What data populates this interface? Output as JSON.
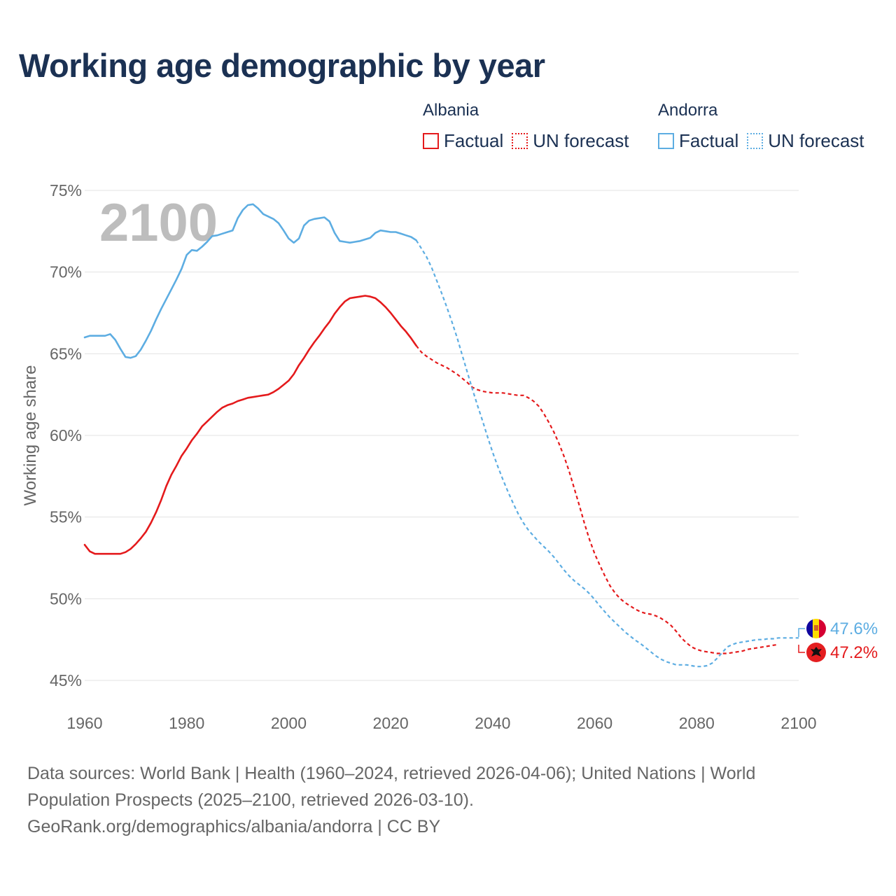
{
  "title": "Working age demographic by year",
  "legend": {
    "albania": {
      "name": "Albania",
      "factual": "Factual",
      "forecast": "UN forecast",
      "color": "#e41a1c"
    },
    "andorra": {
      "name": "Andorra",
      "factual": "Factual",
      "forecast": "UN forecast",
      "color": "#5dade2"
    }
  },
  "source": {
    "line1": "Data sources: World Bank | Health (1960–2024, retrieved 2026-04-06); United Nations | World",
    "line2": "Population Prospects (2025–2100, retrieved 2026-03-10).",
    "line3": "GeoRank.org/demographics/albania/andorra | CC BY"
  },
  "flags": {
    "albania": "albania-flag-icon",
    "andorra": "andorra-flag-icon"
  },
  "chart_data": {
    "type": "line",
    "title": "Working age demographic by year",
    "ylabel": "Working age share",
    "xlabel": "",
    "xlim": [
      1960,
      2100
    ],
    "ylim": [
      45,
      75
    ],
    "x_ticks": [
      "1960",
      "1980",
      "2000",
      "2020",
      "2040",
      "2060",
      "2080",
      "2100"
    ],
    "y_ticks": [
      "45%",
      "50%",
      "55%",
      "60%",
      "65%",
      "70%",
      "75%"
    ],
    "y_tick_values": [
      45,
      50,
      55,
      60,
      65,
      70,
      75
    ],
    "x_tick_values": [
      1960,
      1980,
      2000,
      2020,
      2040,
      2060,
      2080,
      2100
    ],
    "year_overlay": "2100",
    "grid": true,
    "series": [
      {
        "name": "Albania",
        "color": "#e41a1c",
        "end_label": "47.2%",
        "factual": [
          [
            1960,
            53.3
          ],
          [
            1961,
            52.9
          ],
          [
            1962,
            52.75
          ],
          [
            1963,
            52.75
          ],
          [
            1964,
            52.75
          ],
          [
            1965,
            52.75
          ],
          [
            1966,
            52.75
          ],
          [
            1967,
            52.75
          ],
          [
            1968,
            52.85
          ],
          [
            1969,
            53.05
          ],
          [
            1970,
            53.35
          ],
          [
            1971,
            53.7
          ],
          [
            1972,
            54.1
          ],
          [
            1973,
            54.65
          ],
          [
            1974,
            55.3
          ],
          [
            1975,
            56.05
          ],
          [
            1976,
            56.9
          ],
          [
            1977,
            57.6
          ],
          [
            1978,
            58.15
          ],
          [
            1979,
            58.75
          ],
          [
            1980,
            59.2
          ],
          [
            1981,
            59.7
          ],
          [
            1982,
            60.1
          ],
          [
            1983,
            60.55
          ],
          [
            1984,
            60.85
          ],
          [
            1985,
            61.15
          ],
          [
            1986,
            61.45
          ],
          [
            1987,
            61.7
          ],
          [
            1988,
            61.85
          ],
          [
            1989,
            61.95
          ],
          [
            1990,
            62.1
          ],
          [
            1991,
            62.2
          ],
          [
            1992,
            62.3
          ],
          [
            1993,
            62.35
          ],
          [
            1994,
            62.4
          ],
          [
            1995,
            62.45
          ],
          [
            1996,
            62.5
          ],
          [
            1997,
            62.65
          ],
          [
            1998,
            62.85
          ],
          [
            1999,
            63.1
          ],
          [
            2000,
            63.35
          ],
          [
            2001,
            63.75
          ],
          [
            2002,
            64.3
          ],
          [
            2003,
            64.75
          ],
          [
            2004,
            65.25
          ],
          [
            2005,
            65.7
          ],
          [
            2006,
            66.1
          ],
          [
            2007,
            66.55
          ],
          [
            2008,
            66.95
          ],
          [
            2009,
            67.45
          ],
          [
            2010,
            67.85
          ],
          [
            2011,
            68.2
          ],
          [
            2012,
            68.4
          ],
          [
            2013,
            68.45
          ],
          [
            2014,
            68.5
          ],
          [
            2015,
            68.55
          ],
          [
            2016,
            68.5
          ],
          [
            2017,
            68.4
          ],
          [
            2018,
            68.15
          ],
          [
            2019,
            67.85
          ],
          [
            2020,
            67.5
          ],
          [
            2021,
            67.1
          ],
          [
            2022,
            66.7
          ],
          [
            2023,
            66.35
          ],
          [
            2024,
            65.95
          ],
          [
            2025,
            65.5
          ]
        ],
        "forecast": [
          [
            2025,
            65.5
          ],
          [
            2026,
            65.1
          ],
          [
            2027,
            64.85
          ],
          [
            2028,
            64.65
          ],
          [
            2029,
            64.45
          ],
          [
            2030,
            64.3
          ],
          [
            2031,
            64.15
          ],
          [
            2032,
            63.95
          ],
          [
            2033,
            63.75
          ],
          [
            2034,
            63.5
          ],
          [
            2035,
            63.25
          ],
          [
            2036,
            62.95
          ],
          [
            2037,
            62.8
          ],
          [
            2038,
            62.7
          ],
          [
            2039,
            62.65
          ],
          [
            2040,
            62.6
          ],
          [
            2041,
            62.6
          ],
          [
            2042,
            62.6
          ],
          [
            2043,
            62.55
          ],
          [
            2044,
            62.5
          ],
          [
            2045,
            62.45
          ],
          [
            2046,
            62.45
          ],
          [
            2047,
            62.3
          ],
          [
            2048,
            62.1
          ],
          [
            2049,
            61.8
          ],
          [
            2050,
            61.35
          ],
          [
            2051,
            60.8
          ],
          [
            2052,
            60.2
          ],
          [
            2053,
            59.5
          ],
          [
            2054,
            58.7
          ],
          [
            2055,
            57.8
          ],
          [
            2056,
            56.75
          ],
          [
            2057,
            55.7
          ],
          [
            2058,
            54.6
          ],
          [
            2059,
            53.6
          ],
          [
            2060,
            52.75
          ],
          [
            2061,
            52.05
          ],
          [
            2062,
            51.4
          ],
          [
            2063,
            50.8
          ],
          [
            2064,
            50.35
          ],
          [
            2065,
            50.0
          ],
          [
            2066,
            49.75
          ],
          [
            2067,
            49.55
          ],
          [
            2068,
            49.35
          ],
          [
            2069,
            49.2
          ],
          [
            2070,
            49.1
          ],
          [
            2071,
            49.05
          ],
          [
            2072,
            48.95
          ],
          [
            2073,
            48.8
          ],
          [
            2074,
            48.6
          ],
          [
            2075,
            48.35
          ],
          [
            2076,
            48.0
          ],
          [
            2077,
            47.6
          ],
          [
            2078,
            47.3
          ],
          [
            2079,
            47.05
          ],
          [
            2080,
            46.9
          ],
          [
            2081,
            46.8
          ],
          [
            2082,
            46.75
          ],
          [
            2083,
            46.7
          ],
          [
            2084,
            46.65
          ],
          [
            2085,
            46.65
          ],
          [
            2086,
            46.65
          ],
          [
            2087,
            46.7
          ],
          [
            2088,
            46.75
          ],
          [
            2089,
            46.8
          ],
          [
            2090,
            46.9
          ],
          [
            2091,
            46.95
          ],
          [
            2092,
            47.0
          ],
          [
            2093,
            47.05
          ],
          [
            2094,
            47.1
          ],
          [
            2095,
            47.15
          ],
          [
            2096,
            47.2
          ]
        ]
      },
      {
        "name": "Andorra",
        "color": "#5dade2",
        "end_label": "47.6%",
        "factual": [
          [
            1960,
            66.0
          ],
          [
            1961,
            66.1
          ],
          [
            1962,
            66.1
          ],
          [
            1963,
            66.1
          ],
          [
            1964,
            66.1
          ],
          [
            1965,
            66.2
          ],
          [
            1966,
            65.85
          ],
          [
            1967,
            65.3
          ],
          [
            1968,
            64.8
          ],
          [
            1969,
            64.75
          ],
          [
            1970,
            64.85
          ],
          [
            1971,
            65.25
          ],
          [
            1972,
            65.8
          ],
          [
            1973,
            66.4
          ],
          [
            1974,
            67.1
          ],
          [
            1975,
            67.75
          ],
          [
            1976,
            68.35
          ],
          [
            1977,
            68.95
          ],
          [
            1978,
            69.55
          ],
          [
            1979,
            70.2
          ],
          [
            1980,
            71.05
          ],
          [
            1981,
            71.35
          ],
          [
            1982,
            71.3
          ],
          [
            1983,
            71.55
          ],
          [
            1984,
            71.85
          ],
          [
            1985,
            72.2
          ],
          [
            1986,
            72.25
          ],
          [
            1987,
            72.35
          ],
          [
            1988,
            72.45
          ],
          [
            1989,
            72.55
          ],
          [
            1990,
            73.3
          ],
          [
            1991,
            73.8
          ],
          [
            1992,
            74.1
          ],
          [
            1993,
            74.15
          ],
          [
            1994,
            73.9
          ],
          [
            1995,
            73.55
          ],
          [
            1996,
            73.4
          ],
          [
            1997,
            73.25
          ],
          [
            1998,
            73.0
          ],
          [
            1999,
            72.55
          ],
          [
            2000,
            72.05
          ],
          [
            2001,
            71.8
          ],
          [
            2002,
            72.05
          ],
          [
            2003,
            72.85
          ],
          [
            2004,
            73.15
          ],
          [
            2005,
            73.25
          ],
          [
            2006,
            73.3
          ],
          [
            2007,
            73.35
          ],
          [
            2008,
            73.1
          ],
          [
            2009,
            72.4
          ],
          [
            2010,
            71.9
          ],
          [
            2011,
            71.85
          ],
          [
            2012,
            71.8
          ],
          [
            2013,
            71.85
          ],
          [
            2014,
            71.9
          ],
          [
            2015,
            72.0
          ],
          [
            2016,
            72.1
          ],
          [
            2017,
            72.4
          ],
          [
            2018,
            72.55
          ],
          [
            2019,
            72.5
          ],
          [
            2020,
            72.45
          ],
          [
            2021,
            72.45
          ],
          [
            2022,
            72.35
          ],
          [
            2023,
            72.25
          ],
          [
            2024,
            72.15
          ],
          [
            2025,
            71.95
          ]
        ],
        "forecast": [
          [
            2025,
            71.95
          ],
          [
            2026,
            71.45
          ],
          [
            2027,
            70.95
          ],
          [
            2028,
            70.3
          ],
          [
            2029,
            69.5
          ],
          [
            2030,
            68.7
          ],
          [
            2031,
            67.85
          ],
          [
            2032,
            66.95
          ],
          [
            2033,
            66.0
          ],
          [
            2034,
            64.95
          ],
          [
            2035,
            63.9
          ],
          [
            2036,
            62.85
          ],
          [
            2037,
            61.85
          ],
          [
            2038,
            60.9
          ],
          [
            2039,
            59.9
          ],
          [
            2040,
            58.95
          ],
          [
            2041,
            58.1
          ],
          [
            2042,
            57.3
          ],
          [
            2043,
            56.55
          ],
          [
            2044,
            55.85
          ],
          [
            2045,
            55.2
          ],
          [
            2046,
            54.65
          ],
          [
            2047,
            54.2
          ],
          [
            2048,
            53.85
          ],
          [
            2049,
            53.5
          ],
          [
            2050,
            53.2
          ],
          [
            2051,
            52.9
          ],
          [
            2052,
            52.55
          ],
          [
            2053,
            52.15
          ],
          [
            2054,
            51.75
          ],
          [
            2055,
            51.4
          ],
          [
            2056,
            51.1
          ],
          [
            2057,
            50.85
          ],
          [
            2058,
            50.6
          ],
          [
            2059,
            50.3
          ],
          [
            2060,
            49.95
          ],
          [
            2061,
            49.55
          ],
          [
            2062,
            49.2
          ],
          [
            2063,
            48.85
          ],
          [
            2064,
            48.55
          ],
          [
            2065,
            48.25
          ],
          [
            2066,
            47.95
          ],
          [
            2067,
            47.7
          ],
          [
            2068,
            47.45
          ],
          [
            2069,
            47.25
          ],
          [
            2070,
            47.0
          ],
          [
            2071,
            46.75
          ],
          [
            2072,
            46.5
          ],
          [
            2073,
            46.3
          ],
          [
            2074,
            46.15
          ],
          [
            2075,
            46.05
          ],
          [
            2076,
            45.95
          ],
          [
            2077,
            45.95
          ],
          [
            2078,
            45.95
          ],
          [
            2079,
            45.9
          ],
          [
            2080,
            45.85
          ],
          [
            2081,
            45.85
          ],
          [
            2082,
            45.9
          ],
          [
            2083,
            46.05
          ],
          [
            2084,
            46.35
          ],
          [
            2085,
            46.7
          ],
          [
            2086,
            47.05
          ],
          [
            2087,
            47.2
          ],
          [
            2088,
            47.3
          ],
          [
            2089,
            47.35
          ],
          [
            2090,
            47.4
          ],
          [
            2091,
            47.45
          ],
          [
            2092,
            47.5
          ],
          [
            2093,
            47.5
          ],
          [
            2094,
            47.55
          ],
          [
            2095,
            47.55
          ],
          [
            2096,
            47.6
          ],
          [
            2097,
            47.6
          ],
          [
            2098,
            47.6
          ],
          [
            2099,
            47.6
          ],
          [
            2100,
            47.6
          ]
        ]
      }
    ]
  }
}
